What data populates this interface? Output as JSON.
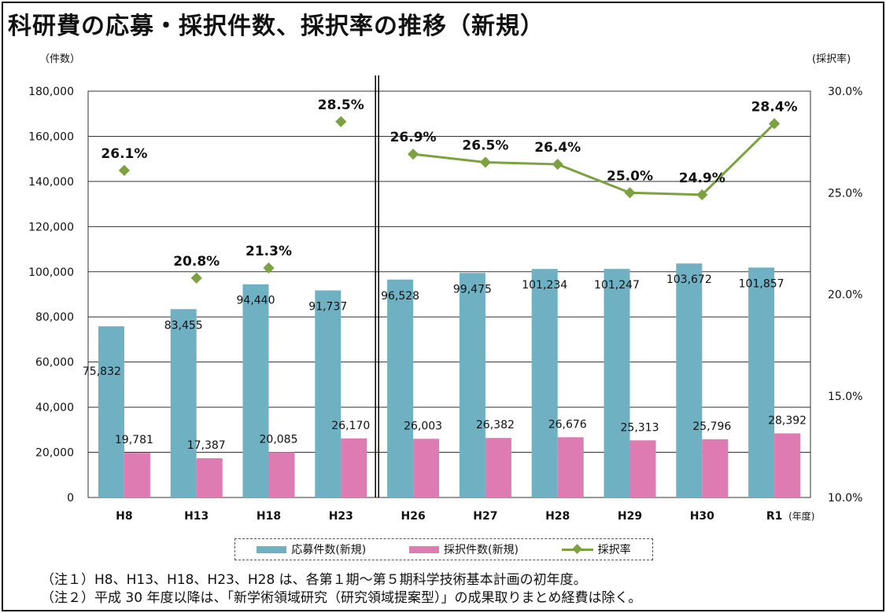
{
  "title": "科研費の応募・採択件数、採択率の推移（新規）",
  "unit_left": "（件数）",
  "unit_right": "(採択率)",
  "x_unit": "(年度)",
  "notes": [
    "（注１）H8、H13、H18、H23、H28 は、各第１期～第５期科学技術基本計画の初年度。",
    "（注２）平成 30 年度以降は、「新学術領域研究（研究領域提案型）」の成果取りまとめ経費は除く。"
  ],
  "colors": {
    "applications": "#6fb0c3",
    "adoptions": "#de7bb3",
    "rate": "#7ba23f"
  },
  "chart_data": {
    "type": "bar",
    "categories": [
      "H8",
      "H13",
      "H18",
      "H23",
      "H26",
      "H27",
      "H28",
      "H29",
      "H30",
      "R1"
    ],
    "series": [
      {
        "name": "応募件数(新規)",
        "type": "bar",
        "axis": "left",
        "values": [
          75832,
          83455,
          94440,
          91737,
          96528,
          99475,
          101234,
          101247,
          103672,
          101857
        ],
        "labels": [
          "75,832",
          "83,455",
          "94,440",
          "91,737",
          "96,528",
          "99,475",
          "101,234",
          "101,247",
          "103,672",
          "101,857"
        ]
      },
      {
        "name": "採択件数(新規)",
        "type": "bar",
        "axis": "left",
        "values": [
          19781,
          17387,
          20085,
          26170,
          26003,
          26382,
          26676,
          25313,
          25796,
          28392
        ],
        "labels": [
          "19,781",
          "17,387",
          "20,085",
          "26,170",
          "26,003",
          "26,382",
          "26,676",
          "25,313",
          "25,796",
          "28,392"
        ]
      },
      {
        "name": "採択率",
        "type": "line",
        "axis": "right",
        "values": [
          26.1,
          20.8,
          21.3,
          28.5,
          26.9,
          26.5,
          26.4,
          25.0,
          24.9,
          28.4
        ],
        "labels": [
          "26.1%",
          "20.8%",
          "21.3%",
          "28.5%",
          "26.9%",
          "26.5%",
          "26.4%",
          "25.0%",
          "24.9%",
          "28.4%"
        ]
      }
    ],
    "ylim": [
      0,
      180000
    ],
    "yticks": [
      0,
      20000,
      40000,
      60000,
      80000,
      100000,
      120000,
      140000,
      160000,
      180000
    ],
    "ytick_labels": [
      "0",
      "20,000",
      "40,000",
      "60,000",
      "80,000",
      "100,000",
      "120,000",
      "140,000",
      "160,000",
      "180,000"
    ],
    "y2lim": [
      10,
      30
    ],
    "y2ticks": [
      10,
      15,
      20,
      25,
      30
    ],
    "y2tick_labels": [
      "10.0%",
      "15.0%",
      "20.0%",
      "25.0%",
      "30.0%"
    ],
    "grid": true,
    "line_break_after": "H23",
    "legend": "bottom"
  }
}
